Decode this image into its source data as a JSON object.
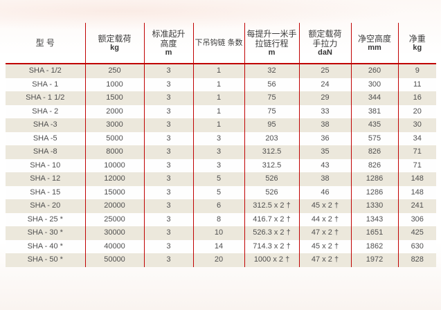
{
  "colors": {
    "accent_red": "#C00000",
    "row_beige": "#ECE8DC",
    "page_bg": "#FDFAF7",
    "text_color": "#4E4E4E",
    "header_text": "#3B3B3B"
  },
  "chart_data": {
    "type": "table",
    "columns": [
      {
        "title": "型 号",
        "unit": ""
      },
      {
        "title": "额定载荷",
        "unit": "kg"
      },
      {
        "title": "标准起升\n高度",
        "unit": "m"
      },
      {
        "title": "下吊钩链 条数",
        "unit": ""
      },
      {
        "title": "每提升一米手\n拉链行程",
        "unit": "m"
      },
      {
        "title": "额定载荷\n手拉力",
        "unit": "daN"
      },
      {
        "title": "净空高度",
        "unit": "mm"
      },
      {
        "title": "净重",
        "unit": "kg"
      }
    ],
    "rows": [
      [
        "SHA - 1/2",
        "250",
        "3",
        "1",
        "32",
        "25",
        "260",
        "9"
      ],
      [
        "SHA - 1",
        "1000",
        "3",
        "1",
        "56",
        "24",
        "300",
        "11"
      ],
      [
        "SHA - 1 1/2",
        "1500",
        "3",
        "1",
        "75",
        "29",
        "344",
        "16"
      ],
      [
        "SHA - 2",
        "2000",
        "3",
        "1",
        "75",
        "33",
        "381",
        "20"
      ],
      [
        "SHA -3",
        "3000",
        "3",
        "1",
        "95",
        "38",
        "435",
        "30"
      ],
      [
        "SHA -5",
        "5000",
        "3",
        "3",
        "203",
        "36",
        "575",
        "34"
      ],
      [
        "SHA -8",
        "8000",
        "3",
        "3",
        "312.5",
        "35",
        "826",
        "71"
      ],
      [
        "SHA - 10",
        "10000",
        "3",
        "3",
        "312.5",
        "43",
        "826",
        "71"
      ],
      [
        "SHA - 12",
        "12000",
        "3",
        "5",
        "526",
        "38",
        "1286",
        "148"
      ],
      [
        "SHA - 15",
        "15000",
        "3",
        "5",
        "526",
        "46",
        "1286",
        "148"
      ],
      [
        "SHA - 20",
        "20000",
        "3",
        "6",
        "312.5 x 2 †",
        "45 x 2 †",
        "1330",
        "241"
      ],
      [
        "SHA - 25 *",
        "25000",
        "3",
        "8",
        "416.7 x 2 †",
        "44 x 2 †",
        "1343",
        "306"
      ],
      [
        "SHA - 30 *",
        "30000",
        "3",
        "10",
        "526.3 x 2 †",
        "47 x 2 †",
        "1651",
        "425"
      ],
      [
        "SHA - 40 *",
        "40000",
        "3",
        "14",
        "714.3 x 2 †",
        "45 x 2 †",
        "1862",
        "630"
      ],
      [
        "SHA - 50 *",
        "50000",
        "3",
        "20",
        "1000 x 2 †",
        "47 x 2 †",
        "1972",
        "828"
      ]
    ]
  }
}
